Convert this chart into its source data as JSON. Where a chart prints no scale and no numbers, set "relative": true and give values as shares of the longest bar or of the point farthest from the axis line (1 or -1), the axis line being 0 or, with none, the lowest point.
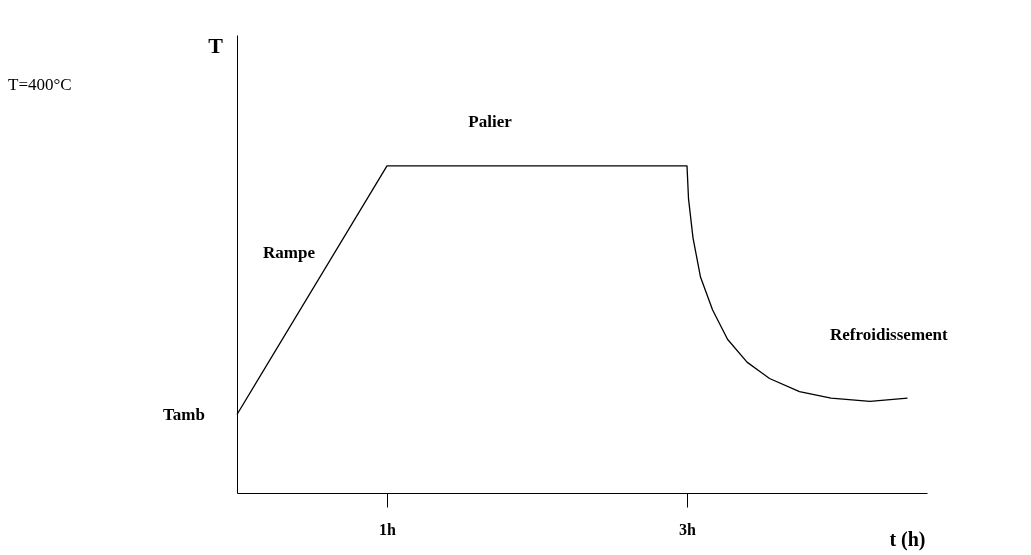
{
  "chart_data": {
    "type": "line",
    "relative": true,
    "xlabel": "t (h)",
    "ylabel": "T",
    "x": [
      0,
      1,
      3,
      3.01,
      3.04,
      3.09,
      3.17,
      3.27,
      3.4,
      3.55,
      3.75,
      3.96,
      4.22,
      4.47
    ],
    "series": [
      {
        "color": "#000000",
        "values": [
          0.24,
          1,
          1,
          0.9,
          0.78,
          0.66,
          0.56,
          0.47,
          0.4,
          0.35,
          0.31,
          0.29,
          0.28,
          0.29
        ]
      }
    ],
    "xlim": [
      0,
      4.6
    ],
    "xticks": [
      {
        "value": 1,
        "label": "1h"
      },
      {
        "value": 3,
        "label": "3h"
      }
    ],
    "annotations": [
      "Palier",
      "Rampe",
      "Refroidissement",
      "T=400°C",
      "Tamb"
    ],
    "grid": false,
    "marker": "none",
    "line_style": "solid"
  }
}
